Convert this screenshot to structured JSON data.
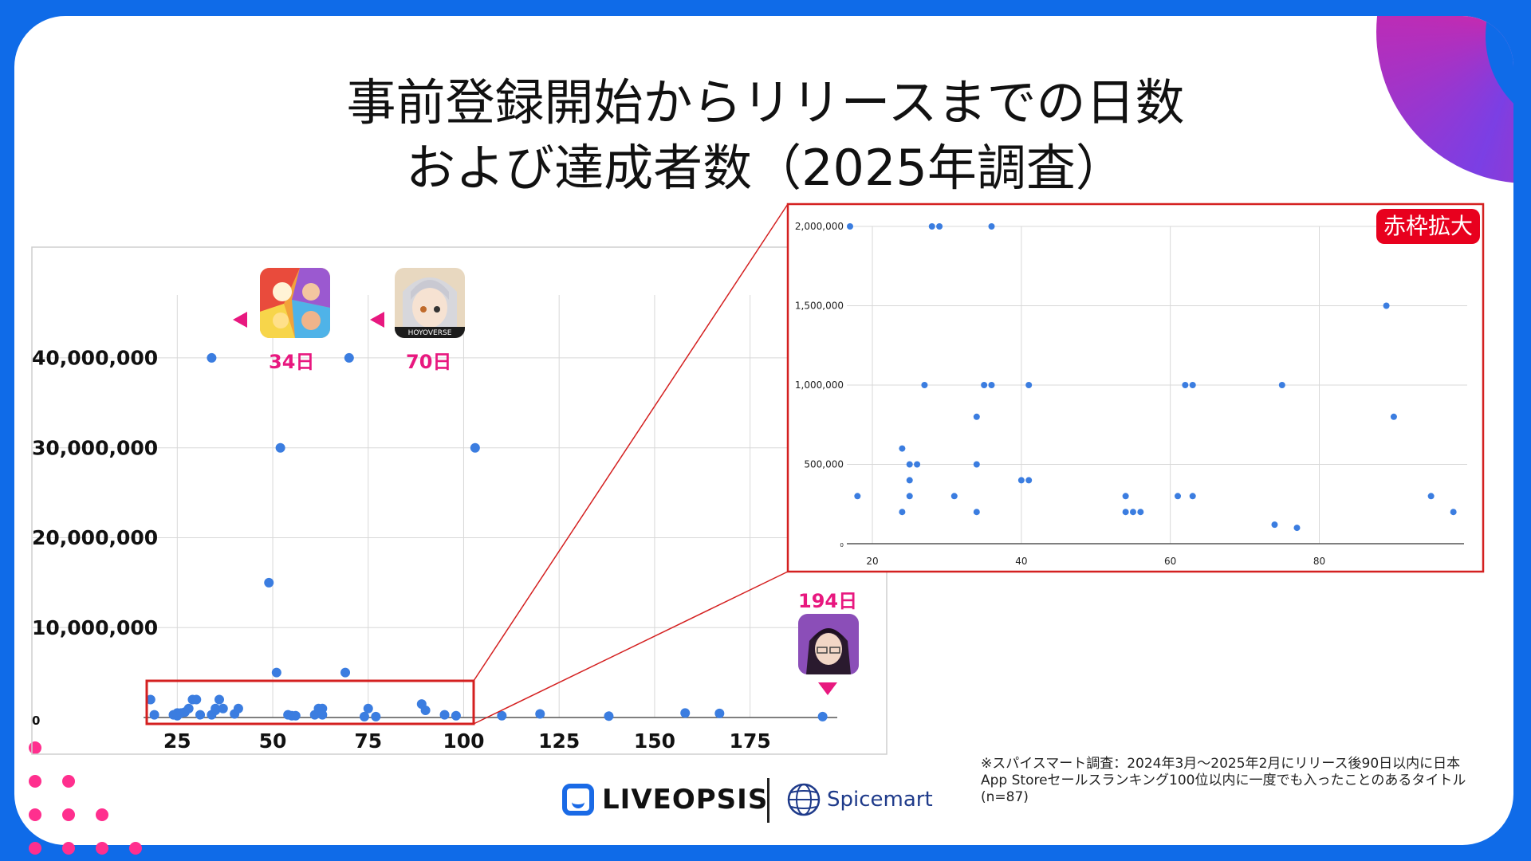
{
  "title": {
    "line1": "事前登録開始からリリースまでの日数",
    "line2": "および達成者数（2025年調査）"
  },
  "colors": {
    "point": "#3b7de0",
    "accent": "#e8187f",
    "frame": "#d42020",
    "background": "#0f6be8"
  },
  "annotations": [
    {
      "label": "34日",
      "day": 34,
      "icon": "game-icon-cartoon-characters"
    },
    {
      "label": "70日",
      "day": 70,
      "icon": "game-icon-hoyoverse-girl"
    },
    {
      "label": "194日",
      "day": 194,
      "icon": "game-icon-anime-man"
    }
  ],
  "icon_texts": {
    "hoyoverse": "HOYOVERSE"
  },
  "zoom_badge": "赤枠拡大",
  "footnote": "※スパイスマート調査：2024年3月〜2025年2月にリリース後90日以内に日本App Storeセールスランキング100位以内に一度でも入ったことのあるタイトル(n=87)",
  "logos": {
    "liveopsis": "LIVEOPSIS",
    "spicemart": "Spicemart"
  },
  "chart_data": [
    {
      "type": "scatter",
      "title": "",
      "xlabel": "",
      "ylabel": "",
      "xlim": [
        17,
        197
      ],
      "ylim": [
        0,
        47000000
      ],
      "x_ticks": [
        25,
        50,
        75,
        100,
        125,
        150,
        175
      ],
      "x_tick_labels": [
        "25",
        "50",
        "75",
        "100",
        "125",
        "150",
        "175"
      ],
      "y_ticks": [
        0,
        10000000,
        20000000,
        30000000,
        40000000
      ],
      "y_tick_labels": [
        "0",
        "10,000,000",
        "20,000,000",
        "30,000,000",
        "40,000,000"
      ],
      "grid": true,
      "series": [
        {
          "points": [
            [
              18,
              2000000
            ],
            [
              19,
              300000
            ],
            [
              24,
              300000
            ],
            [
              25,
              500000
            ],
            [
              25,
              200000
            ],
            [
              26,
              500000
            ],
            [
              27,
              600000
            ],
            [
              28,
              1000000
            ],
            [
              29,
              2000000
            ],
            [
              30,
              2000000
            ],
            [
              31,
              300000
            ],
            [
              34,
              300000
            ],
            [
              35,
              800000
            ],
            [
              35,
              1000000
            ],
            [
              36,
              2000000
            ],
            [
              37,
              1000000
            ],
            [
              40,
              400000
            ],
            [
              41,
              1000000
            ],
            [
              34,
              40000000
            ],
            [
              49,
              15000000
            ],
            [
              51,
              5000000
            ],
            [
              52,
              30000000
            ],
            [
              54,
              300000
            ],
            [
              55,
              200000
            ],
            [
              56,
              200000
            ],
            [
              61,
              300000
            ],
            [
              62,
              1000000
            ],
            [
              63,
              1000000
            ],
            [
              63,
              300000
            ],
            [
              69,
              5000000
            ],
            [
              70,
              40000000
            ],
            [
              74,
              100000
            ],
            [
              75,
              1000000
            ],
            [
              77,
              100000
            ],
            [
              89,
              1500000
            ],
            [
              90,
              800000
            ],
            [
              95,
              300000
            ],
            [
              98,
              200000
            ],
            [
              103,
              30000000
            ],
            [
              110,
              200000
            ],
            [
              120,
              400000
            ],
            [
              138,
              150000
            ],
            [
              158,
              500000
            ],
            [
              167,
              450000
            ],
            [
              194,
              100000
            ]
          ]
        }
      ]
    },
    {
      "type": "scatter",
      "title": "",
      "xlabel": "",
      "ylabel": "",
      "xlim": [
        17,
        99
      ],
      "ylim": [
        0,
        2000000
      ],
      "x_ticks": [
        20,
        40,
        60,
        80
      ],
      "x_tick_labels": [
        "20",
        "40",
        "60",
        "80"
      ],
      "y_ticks": [
        0,
        500000,
        1000000,
        1500000,
        2000000
      ],
      "y_tick_labels": [
        "0",
        "500,000",
        "1,000,000",
        "1,500,000",
        "2,000,000"
      ],
      "grid": true,
      "series": [
        {
          "points": [
            [
              17,
              2000000
            ],
            [
              18,
              300000
            ],
            [
              24,
              600000
            ],
            [
              24,
              200000
            ],
            [
              25,
              500000
            ],
            [
              25,
              400000
            ],
            [
              25,
              300000
            ],
            [
              26,
              500000
            ],
            [
              27,
              1000000
            ],
            [
              28,
              2000000
            ],
            [
              29,
              2000000
            ],
            [
              31,
              300000
            ],
            [
              34,
              800000
            ],
            [
              34,
              500000
            ],
            [
              34,
              200000
            ],
            [
              35,
              1000000
            ],
            [
              36,
              1000000
            ],
            [
              36,
              2000000
            ],
            [
              40,
              400000
            ],
            [
              41,
              400000
            ],
            [
              41,
              1000000
            ],
            [
              54,
              300000
            ],
            [
              54,
              200000
            ],
            [
              55,
              200000
            ],
            [
              56,
              200000
            ],
            [
              61,
              300000
            ],
            [
              62,
              1000000
            ],
            [
              63,
              1000000
            ],
            [
              63,
              300000
            ],
            [
              74,
              120000
            ],
            [
              75,
              1000000
            ],
            [
              77,
              100000
            ],
            [
              89,
              1500000
            ],
            [
              90,
              800000
            ],
            [
              95,
              300000
            ],
            [
              98,
              200000
            ]
          ]
        }
      ]
    }
  ]
}
